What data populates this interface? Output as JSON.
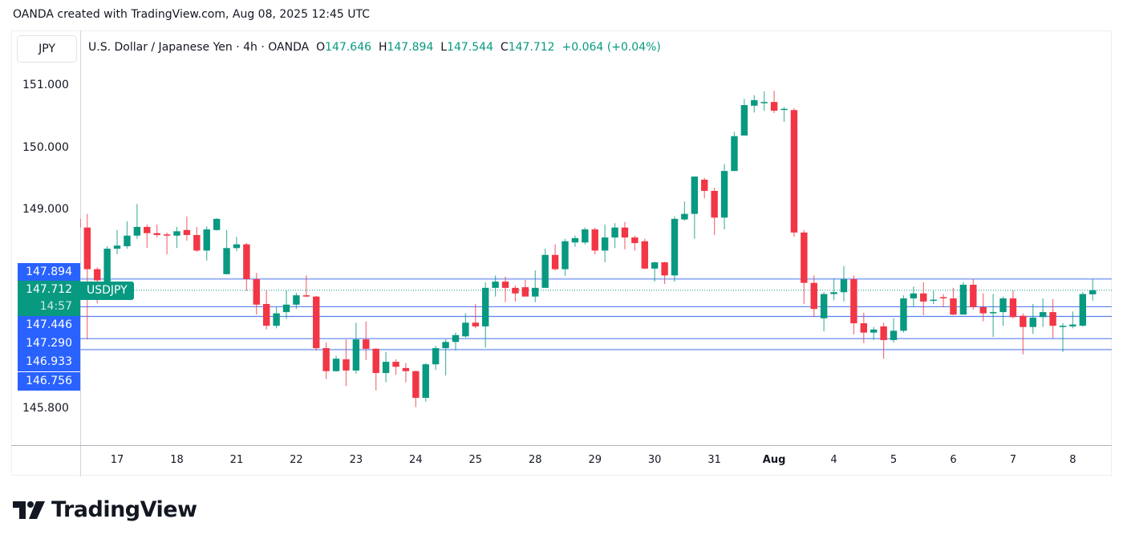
{
  "caption": "OANDA created with TradingView.com, Aug 08, 2025 12:45 UTC",
  "symbol_box": "JPY",
  "legend": {
    "title": "U.S. Dollar / Japanese Yen · 4h · OANDA",
    "o_label": "O",
    "o": "147.646",
    "h_label": "H",
    "h": "147.894",
    "l_label": "L",
    "l": "147.544",
    "c_label": "C",
    "c": "147.712",
    "change": "+0.064 (+0.04%)"
  },
  "symbol_tag": "USDJPY",
  "countdown": "14:57",
  "logo_text": "TradingView",
  "colors": {
    "up": "#089981",
    "down": "#f23645",
    "badge": "#2962ff",
    "line_light": "#9db5f7",
    "line": "#5b7ff0"
  },
  "chart_data": {
    "type": "candlestick",
    "interval": "4h",
    "ylim": [
      145.55,
      151.4
    ],
    "grid": false,
    "price_ticks": [
      "151.000",
      "150.000",
      "149.000",
      "145.800"
    ],
    "price_tick_values": [
      151.0,
      150.0,
      149.0,
      145.8
    ],
    "x_ticks": [
      {
        "label": "17",
        "index": 4
      },
      {
        "label": "18",
        "index": 10
      },
      {
        "label": "21",
        "index": 16
      },
      {
        "label": "22",
        "index": 22
      },
      {
        "label": "23",
        "index": 28
      },
      {
        "label": "24",
        "index": 34
      },
      {
        "label": "25",
        "index": 40
      },
      {
        "label": "28",
        "index": 46
      },
      {
        "label": "29",
        "index": 52
      },
      {
        "label": "30",
        "index": 58
      },
      {
        "label": "31",
        "index": 64
      },
      {
        "label": "Aug",
        "index": 70,
        "bold": true
      },
      {
        "label": "4",
        "index": 76
      },
      {
        "label": "5",
        "index": 82
      },
      {
        "label": "6",
        "index": 88
      },
      {
        "label": "7",
        "index": 94
      },
      {
        "label": "8",
        "index": 100
      }
    ],
    "current_price": 147.712,
    "levels": [
      {
        "label": "147.894",
        "value": 147.894,
        "style": "light"
      },
      {
        "label": "147.446",
        "value": 147.446,
        "style": "solid"
      },
      {
        "label": "147.290",
        "value": 147.29,
        "style": "solid"
      },
      {
        "label": "146.933",
        "value": 146.933,
        "style": "solid"
      },
      {
        "label": "146.756",
        "value": 146.756,
        "style": "light"
      }
    ],
    "current_label": "147.712",
    "ohlc": [
      [
        148.86,
        148.9,
        148.7,
        148.72
      ],
      [
        148.72,
        148.94,
        146.92,
        148.05
      ],
      [
        148.05,
        148.08,
        147.5,
        147.87
      ],
      [
        147.85,
        148.42,
        147.8,
        148.38
      ],
      [
        148.38,
        148.68,
        148.29,
        148.43
      ],
      [
        148.42,
        148.82,
        148.38,
        148.59
      ],
      [
        148.59,
        149.1,
        148.54,
        148.73
      ],
      [
        148.73,
        148.77,
        148.39,
        148.63
      ],
      [
        148.63,
        148.77,
        148.56,
        148.6
      ],
      [
        148.61,
        148.64,
        148.29,
        148.59
      ],
      [
        148.59,
        148.73,
        148.39,
        148.66
      ],
      [
        148.68,
        148.9,
        148.51,
        148.6
      ],
      [
        148.6,
        148.73,
        148.33,
        148.35
      ],
      [
        148.35,
        148.74,
        148.19,
        148.69
      ],
      [
        148.68,
        148.87,
        148.67,
        148.86
      ],
      [
        147.97,
        148.68,
        147.97,
        148.39
      ],
      [
        148.39,
        148.57,
        148.34,
        148.45
      ],
      [
        148.45,
        148.47,
        147.7,
        147.89
      ],
      [
        147.89,
        147.99,
        147.32,
        147.48
      ],
      [
        147.49,
        147.71,
        147.08,
        147.14
      ],
      [
        147.14,
        147.44,
        147.1,
        147.34
      ],
      [
        147.36,
        147.71,
        147.25,
        147.48
      ],
      [
        147.48,
        147.67,
        147.41,
        147.63
      ],
      [
        147.63,
        147.95,
        147.6,
        147.61
      ],
      [
        147.61,
        147.62,
        146.74,
        146.78
      ],
      [
        146.78,
        146.87,
        146.28,
        146.41
      ],
      [
        146.41,
        146.66,
        146.4,
        146.61
      ],
      [
        146.6,
        146.92,
        146.17,
        146.42
      ],
      [
        146.42,
        147.19,
        146.37,
        146.92
      ],
      [
        146.92,
        147.21,
        146.59,
        146.77
      ],
      [
        146.77,
        146.78,
        146.1,
        146.38
      ],
      [
        146.38,
        146.72,
        146.23,
        146.56
      ],
      [
        146.56,
        146.6,
        146.35,
        146.48
      ],
      [
        146.46,
        146.54,
        146.23,
        146.41
      ],
      [
        146.41,
        146.42,
        145.83,
        145.98
      ],
      [
        145.98,
        146.54,
        145.92,
        146.52
      ],
      [
        146.52,
        146.82,
        146.43,
        146.78
      ],
      [
        146.78,
        146.92,
        146.34,
        146.88
      ],
      [
        146.88,
        147.03,
        146.74,
        146.99
      ],
      [
        146.97,
        147.34,
        146.95,
        147.19
      ],
      [
        147.19,
        147.49,
        147.1,
        147.13
      ],
      [
        147.13,
        147.84,
        146.79,
        147.75
      ],
      [
        147.75,
        147.95,
        147.61,
        147.85
      ],
      [
        147.85,
        147.93,
        147.52,
        147.75
      ],
      [
        147.75,
        147.79,
        147.53,
        147.66
      ],
      [
        147.76,
        147.88,
        147.61,
        147.61
      ],
      [
        147.61,
        148.03,
        147.52,
        147.75
      ],
      [
        147.75,
        148.38,
        147.75,
        148.28
      ],
      [
        148.28,
        148.45,
        148.03,
        148.05
      ],
      [
        148.05,
        148.54,
        147.94,
        148.5
      ],
      [
        148.48,
        148.59,
        148.41,
        148.55
      ],
      [
        148.48,
        148.72,
        148.45,
        148.69
      ],
      [
        148.69,
        148.72,
        148.29,
        148.35
      ],
      [
        148.35,
        148.77,
        148.16,
        148.56
      ],
      [
        148.56,
        148.79,
        148.39,
        148.72
      ],
      [
        148.72,
        148.81,
        148.37,
        148.56
      ],
      [
        148.56,
        148.59,
        148.35,
        148.47
      ],
      [
        148.5,
        148.54,
        148.05,
        148.06
      ],
      [
        148.06,
        148.17,
        147.85,
        148.16
      ],
      [
        148.16,
        148.17,
        147.81,
        147.95
      ],
      [
        147.95,
        148.9,
        147.85,
        148.86
      ],
      [
        148.85,
        149.14,
        148.83,
        148.94
      ],
      [
        148.94,
        149.54,
        148.54,
        149.54
      ],
      [
        149.49,
        149.52,
        149.19,
        149.31
      ],
      [
        149.31,
        149.36,
        148.6,
        148.88
      ],
      [
        148.88,
        149.74,
        148.69,
        149.63
      ],
      [
        149.63,
        150.26,
        149.63,
        150.19
      ],
      [
        150.2,
        150.79,
        150.2,
        150.69
      ],
      [
        150.68,
        150.85,
        150.57,
        150.77
      ],
      [
        150.72,
        150.91,
        150.6,
        150.74
      ],
      [
        150.74,
        150.92,
        150.56,
        150.6
      ],
      [
        150.62,
        150.66,
        150.42,
        150.63
      ],
      [
        150.61,
        150.64,
        148.57,
        148.64
      ],
      [
        148.64,
        148.68,
        147.49,
        147.83
      ],
      [
        147.83,
        147.95,
        147.28,
        147.41
      ],
      [
        147.26,
        147.68,
        147.05,
        147.65
      ],
      [
        147.65,
        147.9,
        147.55,
        147.68
      ],
      [
        147.68,
        148.1,
        147.53,
        147.89
      ],
      [
        147.89,
        147.95,
        147.0,
        147.18
      ],
      [
        147.18,
        147.35,
        146.86,
        147.03
      ],
      [
        147.03,
        147.12,
        146.91,
        147.08
      ],
      [
        147.13,
        147.19,
        146.61,
        146.91
      ],
      [
        146.91,
        147.26,
        146.87,
        147.06
      ],
      [
        147.06,
        147.63,
        147.03,
        147.58
      ],
      [
        147.58,
        147.77,
        147.45,
        147.66
      ],
      [
        147.66,
        147.84,
        147.31,
        147.53
      ],
      [
        147.55,
        147.7,
        147.49,
        147.56
      ],
      [
        147.6,
        147.65,
        147.44,
        147.59
      ],
      [
        147.58,
        147.75,
        147.31,
        147.32
      ],
      [
        147.32,
        147.84,
        147.32,
        147.8
      ],
      [
        147.8,
        147.89,
        147.4,
        147.44
      ],
      [
        147.44,
        147.66,
        147.21,
        147.34
      ],
      [
        147.34,
        147.65,
        146.96,
        147.36
      ],
      [
        147.36,
        147.61,
        147.14,
        147.58
      ],
      [
        147.58,
        147.71,
        147.26,
        147.28
      ],
      [
        147.3,
        147.34,
        146.68,
        147.12
      ],
      [
        147.12,
        147.49,
        147.01,
        147.27
      ],
      [
        147.28,
        147.58,
        147.12,
        147.36
      ],
      [
        147.36,
        147.57,
        146.94,
        147.14
      ],
      [
        147.12,
        147.18,
        146.72,
        147.14
      ],
      [
        147.13,
        147.37,
        147.1,
        147.16
      ],
      [
        147.14,
        147.68,
        147.13,
        147.65
      ],
      [
        147.646,
        147.894,
        147.544,
        147.712
      ]
    ]
  }
}
